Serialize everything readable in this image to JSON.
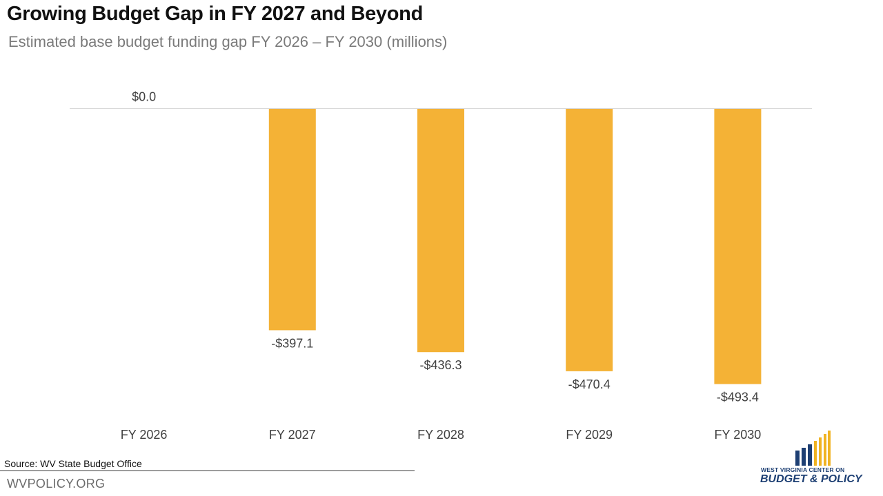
{
  "header": {
    "title": "Growing Budget Gap in FY 2027 and Beyond",
    "subtitle": "Estimated base budget funding gap FY 2026 – FY 2030 (millions)"
  },
  "footer": {
    "source": "Source: WV State Budget Office",
    "website": "WVPOLICY.ORG"
  },
  "logo": {
    "line1": "WEST VIRGINIA CENTER ON",
    "line2": "BUDGET & POLICY",
    "colors": {
      "navy": "#1d3f73",
      "gold": "#f0b323"
    }
  },
  "colors": {
    "bar": "#f4b236",
    "zero_line": "#d9d9d9",
    "label": "#404040"
  },
  "chart_data": {
    "type": "bar",
    "title": "Growing Budget Gap in FY 2027 and Beyond",
    "subtitle": "Estimated base budget funding gap FY 2026 – FY 2030 (millions)",
    "xlabel": "",
    "ylabel": "",
    "categories": [
      "FY 2026",
      "FY 2027",
      "FY 2028",
      "FY 2029",
      "FY 2030"
    ],
    "values": [
      0.0,
      -397.1,
      -436.3,
      -470.4,
      -493.4
    ],
    "data_labels": [
      "$0.0",
      "-$397.1",
      "-$436.3",
      "-$470.4",
      "-$493.4"
    ],
    "ylim": [
      -493.4,
      0
    ],
    "grid": false,
    "legend": "none"
  }
}
